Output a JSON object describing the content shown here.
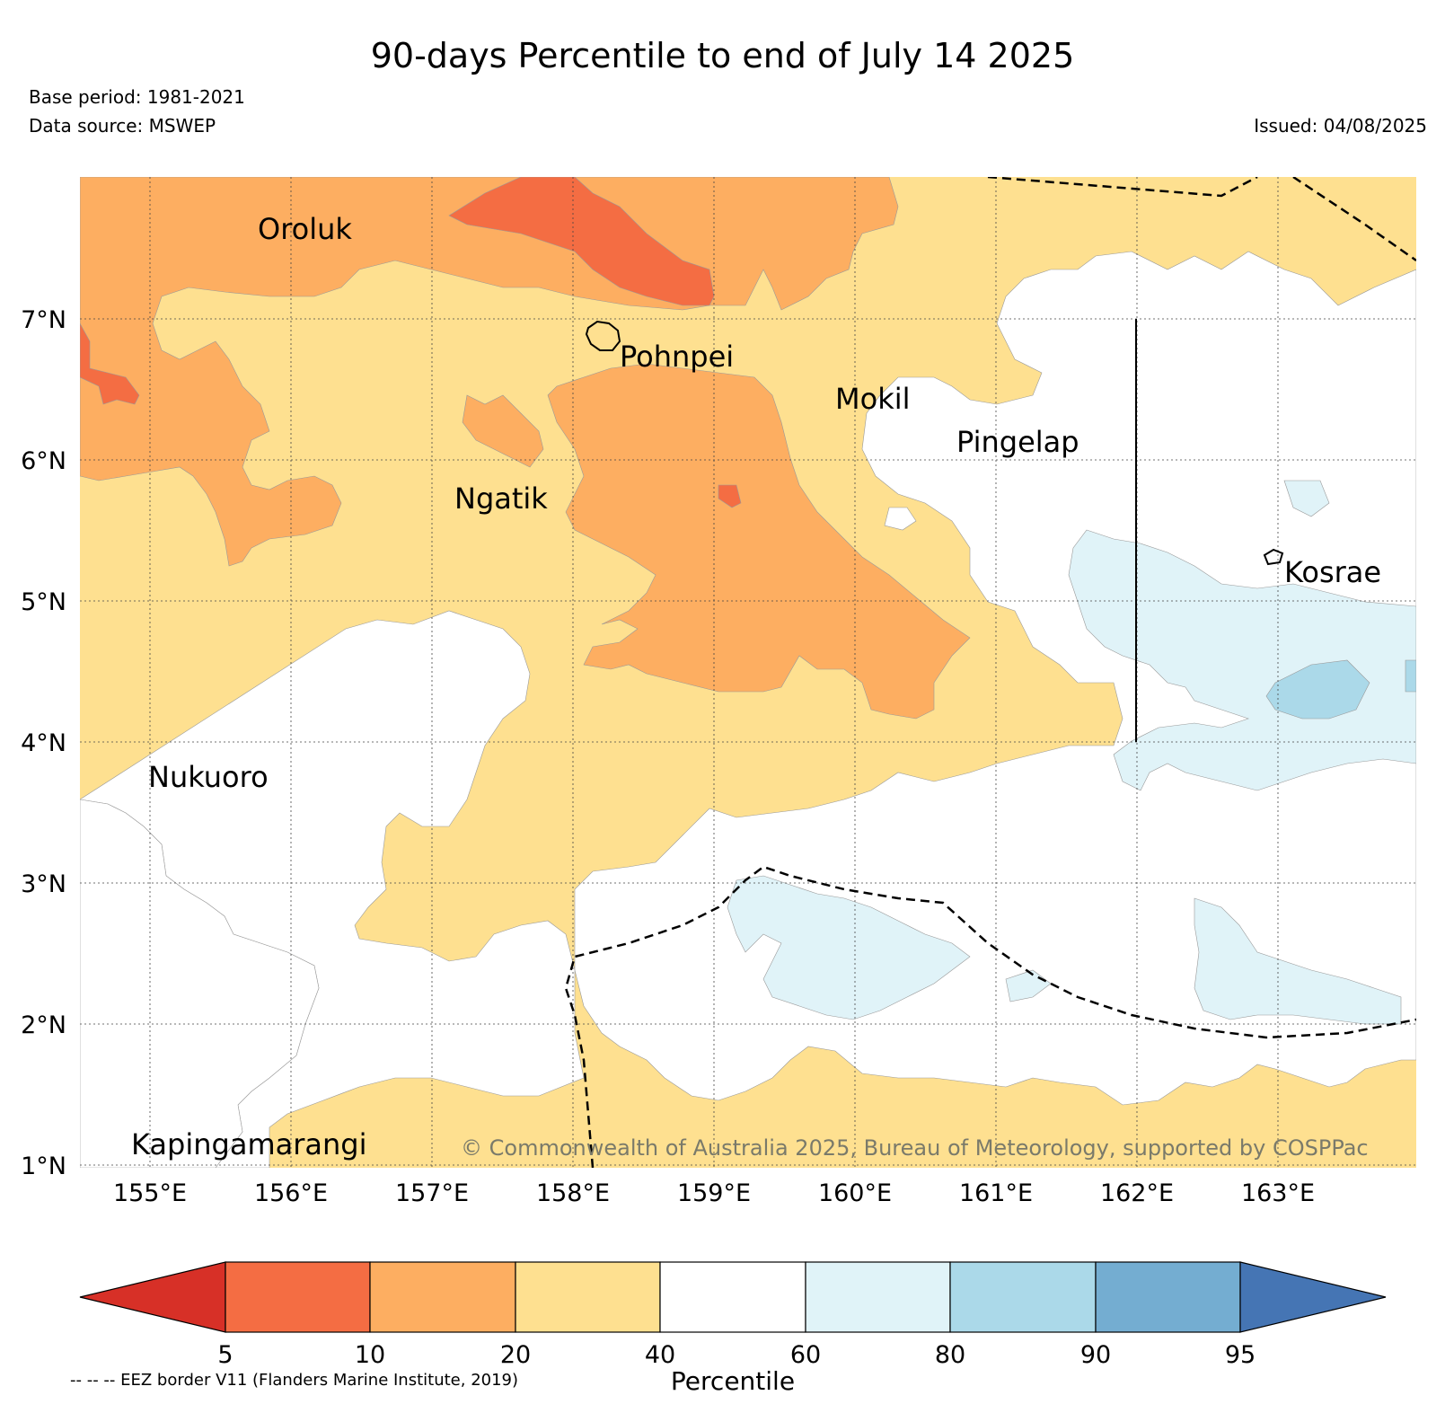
{
  "header": {
    "title": "90-days Percentile to end of July 14 2025",
    "base_period": "Base period: 1981-2021",
    "data_source": "Data source: MSWEP",
    "issued": "Issued: 04/08/2025"
  },
  "map": {
    "lat_labels": [
      "7°N",
      "6°N",
      "5°N",
      "4°N",
      "3°N",
      "2°N",
      "1°N"
    ],
    "lon_labels": [
      "155°E",
      "156°E",
      "157°E",
      "158°E",
      "159°E",
      "160°E",
      "161°E",
      "162°E",
      "163°E"
    ],
    "places": [
      "Oroluk",
      "Pohnpei",
      "Mokil",
      "Pingelap",
      "Ngatik",
      "Kosrae",
      "Nukuoro",
      "Kapingamarangi"
    ],
    "copyright": "© Commonwealth of Australia 2025, Bureau of Meteorology, supported by COSPPac",
    "category_colors": {
      "below_5": "#d73027",
      "5_10": "#f46d43",
      "10_20": "#fdae61",
      "20_40": "#fee090",
      "40_60": "#ffffff",
      "60_80": "#e0f3f8",
      "80_90": "#abd9e9",
      "90_95": "#74add1",
      "above_95": "#4575b4"
    }
  },
  "colorbar": {
    "ticks": [
      "5",
      "10",
      "20",
      "40",
      "60",
      "80",
      "90",
      "95"
    ],
    "label": "Percentile",
    "colors": [
      "#d73027",
      "#f46d43",
      "#fdae61",
      "#fee090",
      "#ffffff",
      "#e0f3f8",
      "#abd9e9",
      "#74add1",
      "#4575b4"
    ]
  },
  "footer": {
    "eez_note": "-- -- -- EEZ border V11 (Flanders Marine Institute, 2019)"
  }
}
